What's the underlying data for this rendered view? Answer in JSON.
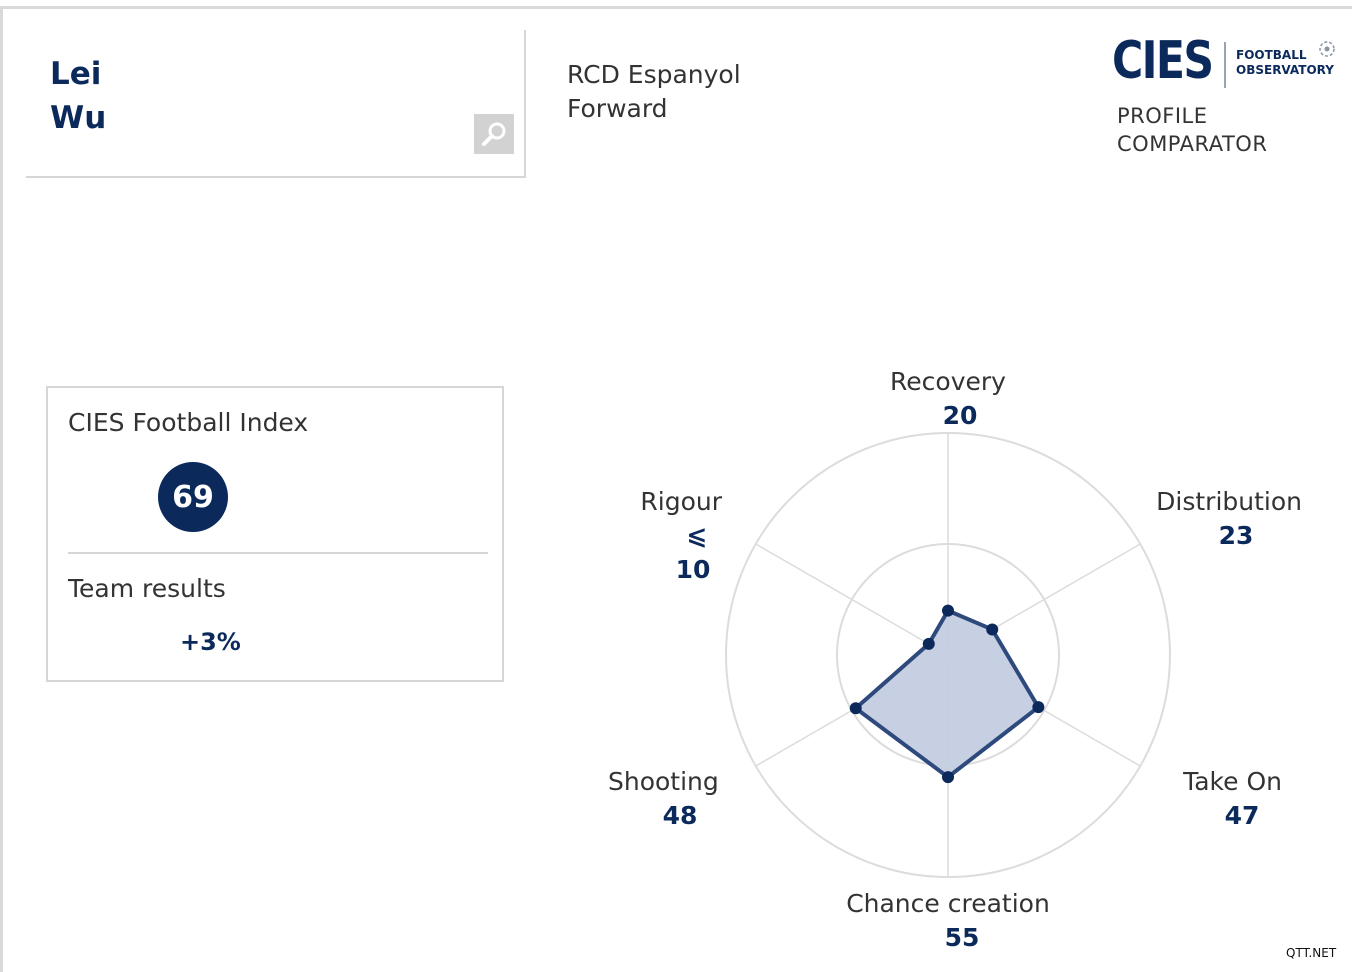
{
  "player": {
    "first_name": "Lei",
    "last_name": "Wu"
  },
  "club": {
    "name": "RCD Espanyol",
    "position": "Forward"
  },
  "logo": {
    "brand": "CIES",
    "line1": "FOOTBALL",
    "line2": "OBSERVATORY"
  },
  "tool": {
    "line1": "PROFILE",
    "line2": "COMPARATOR"
  },
  "index": {
    "label": "CIES Football Index",
    "value": "69"
  },
  "team": {
    "label": "Team results",
    "value": "+3%"
  },
  "watermark": "QTT.NET",
  "colors": {
    "navy": "#0b2a5b",
    "fill": "#c3cde0",
    "stroke": "#2e4a7d",
    "grid": "#dcdcdc"
  },
  "icons": {
    "search": "magnifier-icon"
  },
  "chart_data": {
    "type": "radar",
    "axes": [
      {
        "label": "Recovery",
        "value": 20,
        "display": "20"
      },
      {
        "label": "Distribution",
        "value": 23,
        "display": "23"
      },
      {
        "label": "Take On",
        "value": 47,
        "display": "47"
      },
      {
        "label": "Chance creation",
        "value": 55,
        "display": "55"
      },
      {
        "label": "Shooting",
        "value": 48,
        "display": "48"
      },
      {
        "label": "Rigour",
        "value": 10,
        "display": "10",
        "qualifier": "⩽"
      }
    ],
    "range": [
      0,
      100
    ],
    "rings": [
      50,
      100
    ]
  }
}
